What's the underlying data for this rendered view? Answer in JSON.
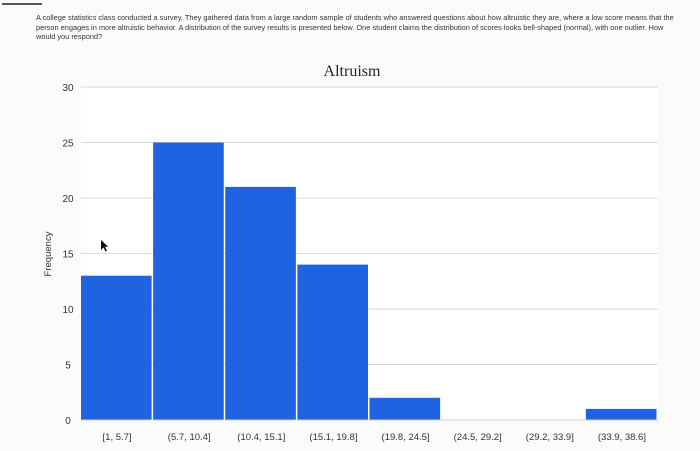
{
  "question": {
    "text": "A college statistics class conducted a survey. They gathered data from a large random sample of students who answered questions about how altruistic they are, where a low score means that the person engages in more altruistic behavior. A distribution of the survey results is presented below. One student claims the distribution of scores looks bell-shaped (normal), with one outlier. How would you respond?"
  },
  "chart_data": {
    "type": "bar",
    "title": "Altruism",
    "xlabel": "",
    "ylabel": "Frequency",
    "categories": [
      "[1, 5.7]",
      "(5.7, 10.4]",
      "(10.4, 15.1]",
      "(15.1, 19.8]",
      "(19.8, 24.5]",
      "(24.5, 29.2]",
      "(29.2, 33.9]",
      "(33.9, 38.6]"
    ],
    "values": [
      13,
      25,
      21,
      14,
      2,
      0,
      0,
      1
    ],
    "ylim": [
      0,
      30
    ],
    "yticks": [
      0,
      5,
      10,
      15,
      20,
      25,
      30
    ],
    "grid": true,
    "bar_color": "#1f63e0",
    "grid_color": "#d9d9d9"
  }
}
